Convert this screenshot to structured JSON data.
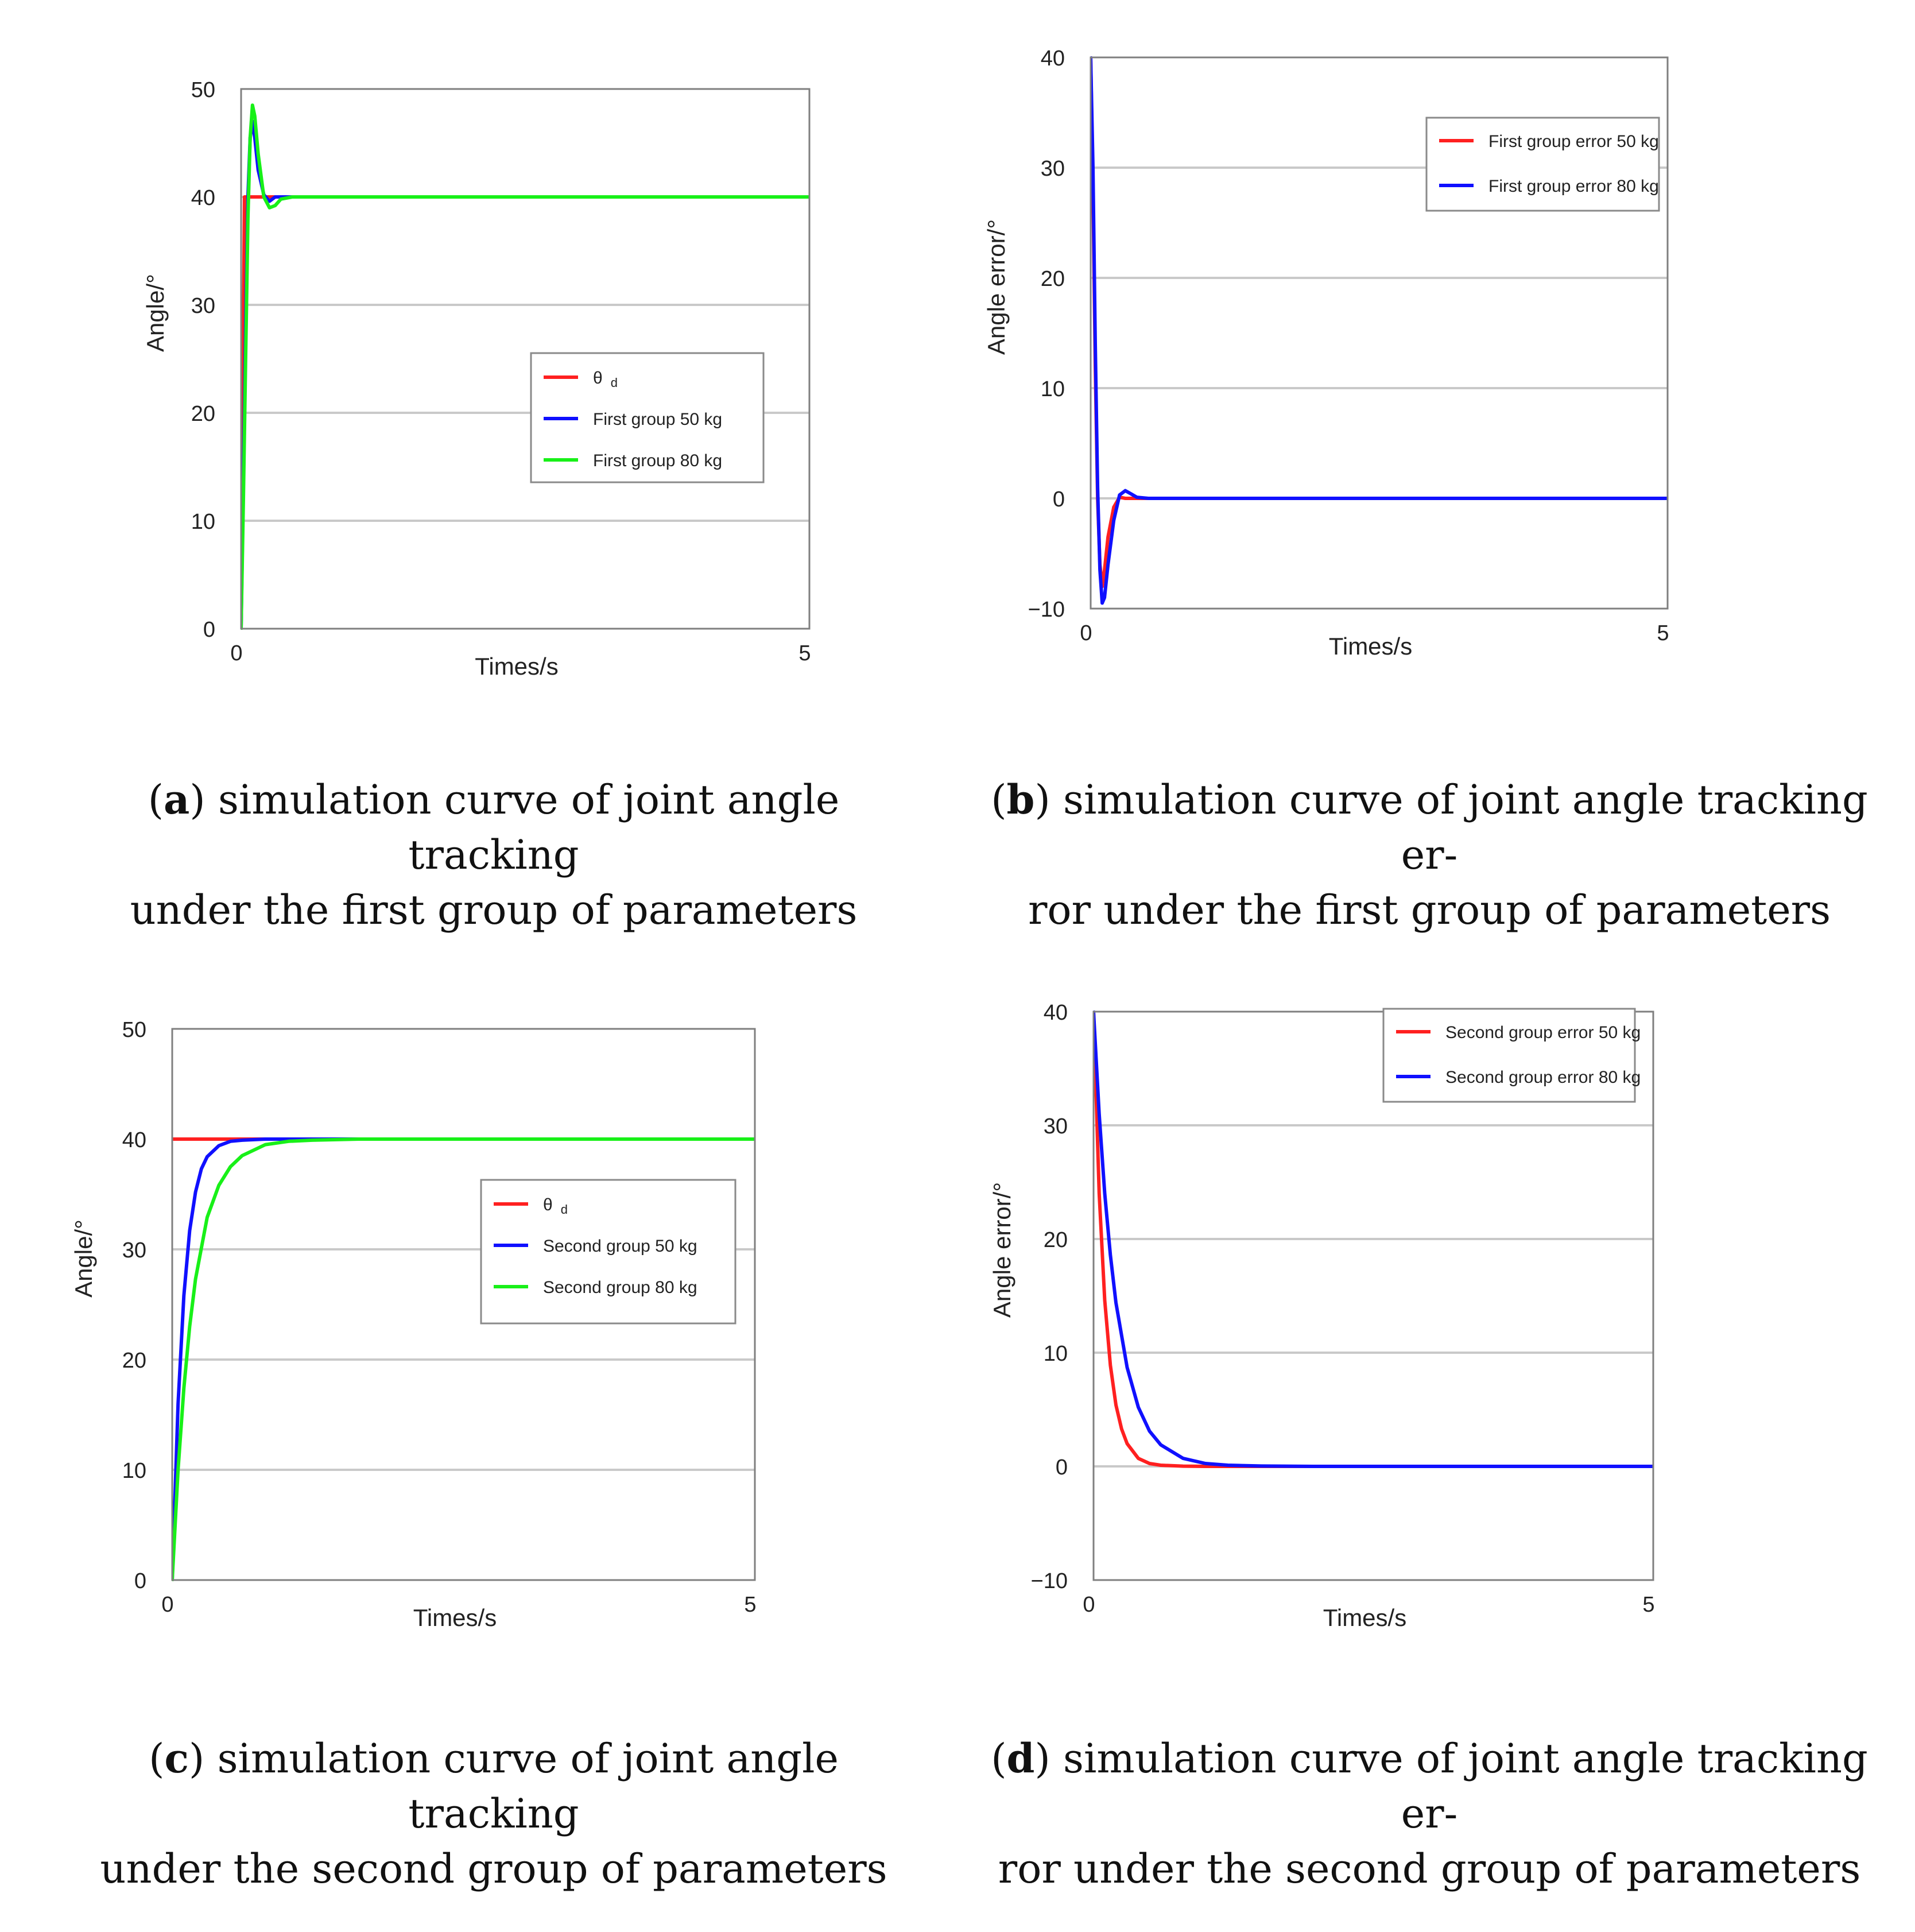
{
  "colors": {
    "red": "#ff2020",
    "blue": "#1010ff",
    "green": "#18f018"
  },
  "chart_data": [
    {
      "id": "a",
      "type": "line",
      "title": "",
      "xlabel": "Times/s",
      "ylabel": "Angle/°",
      "xlim": [
        0,
        5
      ],
      "ylim": [
        0,
        50
      ],
      "xticks": [
        "0",
        "5"
      ],
      "yticks": [
        "0",
        "10",
        "20",
        "30",
        "40",
        "50"
      ],
      "series": [
        {
          "name": "θ",
          "sub": "d",
          "color": "red",
          "x": [
            0,
            0.03,
            5
          ],
          "y": [
            0,
            40,
            40
          ]
        },
        {
          "name": "First group 50 kg",
          "color": "blue",
          "x": [
            0,
            0.02,
            0.04,
            0.06,
            0.08,
            0.1,
            0.12,
            0.15,
            0.2,
            0.25,
            0.3,
            0.4,
            5
          ],
          "y": [
            0,
            14,
            28,
            40,
            45.5,
            47,
            45.5,
            42.5,
            40.2,
            39.6,
            40,
            40,
            40
          ]
        },
        {
          "name": "First group 80 kg",
          "color": "green",
          "x": [
            0,
            0.02,
            0.04,
            0.06,
            0.08,
            0.1,
            0.12,
            0.15,
            0.2,
            0.25,
            0.3,
            0.35,
            0.45,
            5
          ],
          "y": [
            0,
            12,
            25,
            38,
            45.5,
            48.5,
            47.5,
            44,
            40,
            39,
            39.2,
            39.8,
            40,
            40
          ]
        }
      ]
    },
    {
      "id": "b",
      "type": "line",
      "title": "",
      "xlabel": "Times/s",
      "ylabel": "Angle error/°",
      "xlim": [
        0,
        5
      ],
      "ylim": [
        -10,
        40
      ],
      "xticks": [
        "0",
        "5"
      ],
      "yticks": [
        "−10",
        "0",
        "10",
        "20",
        "30",
        "40"
      ],
      "series": [
        {
          "name": "First group error 50 kg",
          "color": "red",
          "x": [
            0,
            0.02,
            0.04,
            0.06,
            0.08,
            0.1,
            0.12,
            0.15,
            0.2,
            0.25,
            0.3,
            0.35,
            5
          ],
          "y": [
            40,
            28,
            12,
            0,
            -6,
            -8,
            -6.5,
            -3.5,
            -0.8,
            0.1,
            0,
            0,
            0
          ]
        },
        {
          "name": "First group error 80 kg",
          "color": "blue",
          "x": [
            0,
            0.02,
            0.04,
            0.06,
            0.08,
            0.1,
            0.12,
            0.15,
            0.2,
            0.25,
            0.3,
            0.35,
            0.4,
            0.5,
            5
          ],
          "y": [
            40,
            30,
            14,
            1,
            -6.5,
            -9.5,
            -9,
            -6,
            -2,
            0.3,
            0.7,
            0.4,
            0.1,
            0,
            0
          ]
        }
      ]
    },
    {
      "id": "c",
      "type": "line",
      "title": "",
      "xlabel": "Times/s",
      "ylabel": "Angle/°",
      "xlim": [
        0,
        5
      ],
      "ylim": [
        0,
        50
      ],
      "xticks": [
        "0",
        "5"
      ],
      "yticks": [
        "0",
        "10",
        "20",
        "30",
        "40",
        "50"
      ],
      "series": [
        {
          "name": "θ",
          "sub": "d",
          "color": "red",
          "x": [
            0,
            5
          ],
          "y": [
            40,
            40
          ]
        },
        {
          "name": "Second group 50 kg",
          "color": "blue",
          "x": [
            0,
            0.05,
            0.1,
            0.15,
            0.2,
            0.25,
            0.3,
            0.4,
            0.5,
            0.6,
            0.8,
            1.0,
            1.4,
            5
          ],
          "y": [
            0,
            16,
            25.8,
            31.7,
            35.2,
            37.3,
            38.4,
            39.4,
            39.8,
            39.9,
            40,
            40,
            40,
            40
          ]
        },
        {
          "name": "Second group 80 kg",
          "color": "green",
          "x": [
            0,
            0.05,
            0.1,
            0.15,
            0.2,
            0.3,
            0.4,
            0.5,
            0.6,
            0.8,
            1.0,
            1.2,
            1.6,
            2.0,
            5
          ],
          "y": [
            0,
            10,
            17.4,
            23,
            27.3,
            32.9,
            35.8,
            37.5,
            38.5,
            39.5,
            39.8,
            39.9,
            40,
            40,
            40
          ]
        }
      ]
    },
    {
      "id": "d",
      "type": "line",
      "title": "",
      "xlabel": "Times/s",
      "ylabel": "Angle error/°",
      "xlim": [
        0,
        5
      ],
      "ylim": [
        -10,
        40
      ],
      "xticks": [
        "0",
        "5"
      ],
      "yticks": [
        "−10",
        "0",
        "10",
        "20",
        "30",
        "40"
      ],
      "series": [
        {
          "name": "Second group error 50 kg",
          "color": "red",
          "x": [
            0,
            0.05,
            0.1,
            0.15,
            0.2,
            0.25,
            0.3,
            0.4,
            0.5,
            0.6,
            0.8,
            1.0,
            1.5,
            5
          ],
          "y": [
            40,
            24,
            14.6,
            8.9,
            5.4,
            3.3,
            2,
            0.7,
            0.25,
            0.1,
            0.02,
            0,
            0,
            0
          ]
        },
        {
          "name": "Second group error 80 kg",
          "color": "blue",
          "x": [
            0,
            0.05,
            0.1,
            0.15,
            0.2,
            0.3,
            0.4,
            0.5,
            0.6,
            0.8,
            1.0,
            1.2,
            1.5,
            2.0,
            5
          ],
          "y": [
            40,
            31,
            24,
            18.6,
            14.4,
            8.7,
            5.2,
            3.1,
            1.9,
            0.7,
            0.25,
            0.1,
            0.03,
            0,
            0
          ]
        }
      ]
    }
  ],
  "captions": [
    {
      "letter": "a",
      "line1": "simulation curve of joint angle tracking",
      "line2": "under the first group of parameters"
    },
    {
      "letter": "b",
      "line1": "simulation curve of joint angle tracking er-",
      "line2": "ror under the first group of parameters"
    },
    {
      "letter": "c",
      "line1": "simulation curve of joint angle tracking",
      "line2": "under the second group of parameters"
    },
    {
      "letter": "d",
      "line1": "simulation curve of joint angle tracking er-",
      "line2": "ror under the second group of parameters"
    }
  ]
}
